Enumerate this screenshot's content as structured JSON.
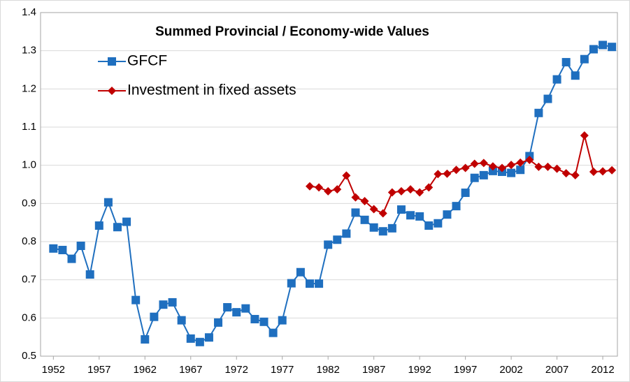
{
  "chart_data": {
    "type": "line",
    "title": "Summed Provincial / Economy-wide Values",
    "x": [
      1952,
      1953,
      1954,
      1955,
      1956,
      1957,
      1958,
      1959,
      1960,
      1961,
      1962,
      1963,
      1964,
      1965,
      1966,
      1967,
      1968,
      1969,
      1970,
      1971,
      1972,
      1973,
      1974,
      1975,
      1976,
      1977,
      1978,
      1979,
      1980,
      1981,
      1982,
      1983,
      1984,
      1985,
      1986,
      1987,
      1988,
      1989,
      1990,
      1991,
      1992,
      1993,
      1994,
      1995,
      1996,
      1997,
      1998,
      1999,
      2000,
      2001,
      2002,
      2003,
      2004,
      2005,
      2006,
      2007,
      2008,
      2009,
      2010,
      2011,
      2012,
      2013
    ],
    "series": [
      {
        "name": "GFCF",
        "color": "#1f6fbf",
        "marker": "square",
        "values": [
          0.782,
          0.778,
          0.755,
          0.789,
          0.714,
          0.842,
          0.903,
          0.838,
          0.852,
          0.647,
          0.544,
          0.603,
          0.635,
          0.641,
          0.594,
          0.546,
          0.537,
          0.549,
          0.588,
          0.628,
          0.615,
          0.625,
          0.597,
          0.59,
          0.561,
          0.594,
          0.691,
          0.72,
          0.69,
          0.69,
          0.792,
          0.805,
          0.821,
          0.876,
          0.857,
          0.837,
          0.827,
          0.835,
          0.884,
          0.869,
          0.866,
          0.842,
          0.848,
          0.871,
          0.893,
          0.928,
          0.967,
          0.974,
          0.985,
          0.983,
          0.98,
          0.988,
          1.024,
          1.137,
          1.174,
          1.225,
          1.27,
          1.235,
          1.278,
          1.304,
          1.315,
          1.31
        ]
      },
      {
        "name": "Investment in fixed assets",
        "color": "#c00000",
        "marker": "diamond",
        "values": [
          null,
          null,
          null,
          null,
          null,
          null,
          null,
          null,
          null,
          null,
          null,
          null,
          null,
          null,
          null,
          null,
          null,
          null,
          null,
          null,
          null,
          null,
          null,
          null,
          null,
          null,
          null,
          null,
          0.945,
          0.942,
          0.932,
          0.937,
          0.973,
          0.916,
          0.906,
          0.885,
          0.874,
          0.929,
          0.932,
          0.937,
          0.929,
          0.942,
          0.977,
          0.978,
          0.988,
          0.993,
          1.004,
          1.006,
          0.997,
          0.993,
          1.001,
          1.007,
          1.014,
          0.996,
          0.996,
          0.991,
          0.979,
          0.974,
          1.078,
          0.983,
          0.984,
          0.987
        ]
      }
    ],
    "xlim": [
      1950.6,
      2013.6
    ],
    "xticks": [
      1952,
      1957,
      1962,
      1967,
      1972,
      1977,
      1982,
      1987,
      1992,
      1997,
      2002,
      2007,
      2012
    ],
    "ylim": [
      0.5,
      1.4
    ],
    "yticks": [
      {
        "value": 0.5,
        "label": "0.5"
      },
      {
        "value": 0.6,
        "label": "0.6"
      },
      {
        "value": 0.7,
        "label": "0.7"
      },
      {
        "value": 0.8,
        "label": "0.8"
      },
      {
        "value": 0.9,
        "label": "0.9"
      },
      {
        "value": 1.0,
        "label": "1.0"
      },
      {
        "value": 1.1,
        "label": "1.1"
      },
      {
        "value": 1.2,
        "label": "1.2"
      },
      {
        "value": 1.3,
        "label": "1.3"
      },
      {
        "value": 1.4,
        "label": "1.4"
      }
    ],
    "grid": true,
    "legend": "upper left"
  }
}
